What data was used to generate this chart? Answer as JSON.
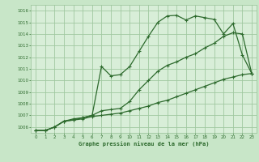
{
  "background_color": "#c8e6c8",
  "plot_bg_color": "#d8eed8",
  "grid_color": "#a0c8a0",
  "line_color": "#2d6a2d",
  "title": "Graphe pression niveau de la mer (hPa)",
  "ylim": [
    1005.5,
    1016.5
  ],
  "xlim": [
    -0.5,
    23.5
  ],
  "yticks": [
    1006,
    1007,
    1008,
    1009,
    1010,
    1011,
    1012,
    1013,
    1014,
    1015,
    1016
  ],
  "xticks": [
    0,
    1,
    2,
    3,
    4,
    5,
    6,
    7,
    8,
    9,
    10,
    11,
    12,
    13,
    14,
    15,
    16,
    17,
    18,
    19,
    20,
    21,
    22,
    23
  ],
  "line1_x": [
    0,
    1,
    2,
    3,
    4,
    5,
    6,
    7,
    8,
    9,
    10,
    11,
    12,
    13,
    14,
    15,
    16,
    17,
    18,
    19,
    20,
    21,
    22,
    23
  ],
  "line1_y": [
    1005.7,
    1005.7,
    1006.0,
    1006.5,
    1006.6,
    1006.8,
    1007.0,
    1011.2,
    1010.4,
    1010.5,
    1011.2,
    1012.5,
    1013.8,
    1015.0,
    1015.55,
    1015.6,
    1015.2,
    1015.55,
    1015.4,
    1015.25,
    1014.0,
    1014.9,
    1012.2,
    1010.6
  ],
  "line2_x": [
    0,
    1,
    2,
    3,
    4,
    5,
    6,
    7,
    8,
    9,
    10,
    11,
    12,
    13,
    14,
    15,
    16,
    17,
    18,
    19,
    20,
    21,
    22,
    23
  ],
  "line2_y": [
    1005.7,
    1005.7,
    1006.0,
    1006.5,
    1006.7,
    1006.8,
    1007.0,
    1007.4,
    1007.5,
    1007.6,
    1008.2,
    1009.2,
    1010.0,
    1010.8,
    1011.3,
    1011.6,
    1012.0,
    1012.3,
    1012.8,
    1013.2,
    1013.8,
    1014.1,
    1014.0,
    1010.6
  ],
  "line3_x": [
    0,
    1,
    2,
    3,
    4,
    5,
    6,
    7,
    8,
    9,
    10,
    11,
    12,
    13,
    14,
    15,
    16,
    17,
    18,
    19,
    20,
    21,
    22,
    23
  ],
  "line3_y": [
    1005.7,
    1005.7,
    1006.0,
    1006.5,
    1006.6,
    1006.7,
    1006.9,
    1007.0,
    1007.1,
    1007.2,
    1007.4,
    1007.6,
    1007.8,
    1008.1,
    1008.3,
    1008.6,
    1008.9,
    1009.2,
    1009.5,
    1009.8,
    1010.1,
    1010.3,
    1010.5,
    1010.6
  ]
}
